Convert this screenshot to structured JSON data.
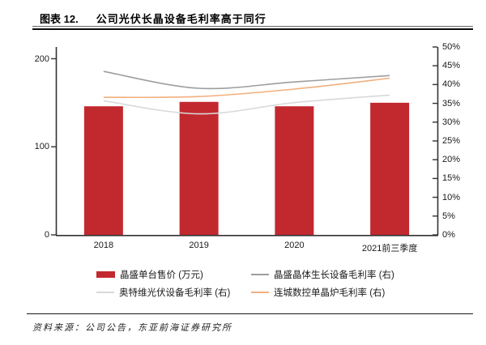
{
  "header": {
    "label": "图表 12.",
    "title": "公司光伏长晶设备毛利率高于同行"
  },
  "source": {
    "text": "资料来源：公司公告，东亚前海证券研究所"
  },
  "colors": {
    "bar": "#C2292F",
    "line_jingsheng": "#9E9E9E",
    "line_aotewei": "#D9D9D9",
    "line_liancheng": "#F1B07E",
    "axis": "#333333"
  },
  "chart_data": {
    "type": "bar+line combo, dual axis",
    "categories": [
      "2018",
      "2019",
      "2020",
      "2021前三季度"
    ],
    "bar_series": {
      "name": "晶盛单台售价 (万元)",
      "axis": "left",
      "values": [
        146,
        151,
        146,
        150
      ]
    },
    "line_series": [
      {
        "name": "晶盛晶体生长设备毛利率 (右)",
        "axis": "right",
        "color_key": "line_jingsheng",
        "values_pct": [
          43.5,
          39.0,
          40.7,
          42.4
        ]
      },
      {
        "name": "奥特维光伏设备毛利率 (右)",
        "axis": "right",
        "color_key": "line_aotewei",
        "values_pct": [
          35.7,
          32.2,
          35.2,
          37.2
        ]
      },
      {
        "name": "连城数控单晶炉毛利率 (右)",
        "axis": "right",
        "color_key": "line_liancheng",
        "values_pct": [
          36.6,
          36.8,
          38.8,
          41.7
        ]
      }
    ],
    "left_axis": {
      "min": 0,
      "max": 200,
      "ticks": [
        "0",
        "100",
        "200"
      ],
      "tick_values": [
        0,
        100,
        200
      ]
    },
    "right_axis": {
      "min_pct": 0,
      "max_pct": 50,
      "step_pct": 5,
      "ticks": [
        "0%",
        "5%",
        "10%",
        "15%",
        "20%",
        "25%",
        "30%",
        "35%",
        "40%",
        "45%",
        "50%"
      ]
    },
    "grid": "off",
    "legend_position": "bottom",
    "legend": [
      {
        "label": "晶盛单台售价 (万元)",
        "swatch": "bar",
        "color_key": "bar"
      },
      {
        "label": "晶盛晶体生长设备毛利率 (右)",
        "swatch": "line",
        "color_key": "line_jingsheng"
      },
      {
        "label": "奥特维光伏设备毛利率 (右)",
        "swatch": "line",
        "color_key": "line_aotewei"
      },
      {
        "label": "连城数控单晶炉毛利率 (右)",
        "swatch": "line",
        "color_key": "line_liancheng"
      }
    ]
  }
}
